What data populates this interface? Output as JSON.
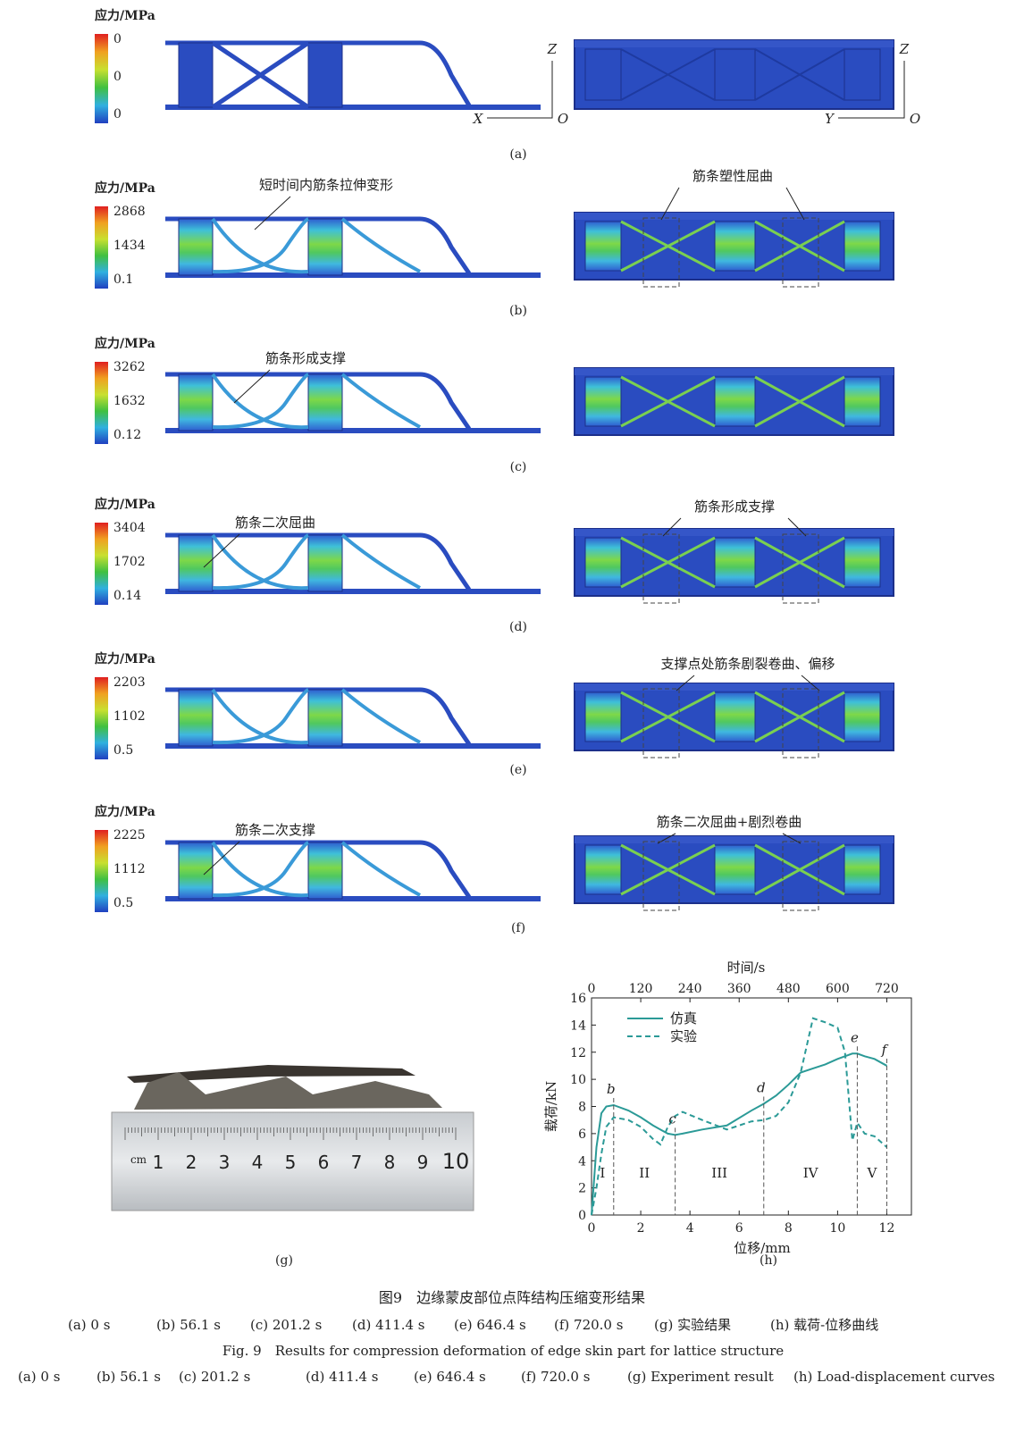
{
  "panels": [
    {
      "label": "(a)",
      "legend_title": "应力/MPa",
      "legend_ticks": [
        0,
        0,
        0
      ],
      "axis_labels_left": [
        "Z",
        "X",
        "O"
      ],
      "axis_labels_right": [
        "Z",
        "Y",
        "O"
      ],
      "annotations_left": [],
      "annotations_right": []
    },
    {
      "label": "(b)",
      "legend_title": "应力/MPa",
      "legend_ticks": [
        2868,
        1434,
        0.1
      ],
      "annotations_left": [
        "短时间内筋条拉伸变形"
      ],
      "annotations_right": [
        "筋条塑性屈曲"
      ]
    },
    {
      "label": "(c)",
      "legend_title": "应力/MPa",
      "legend_ticks": [
        3262,
        1632,
        0.12
      ],
      "annotations_left": [
        "筋条形成支撑"
      ],
      "annotations_right": []
    },
    {
      "label": "(d)",
      "legend_title": "应力/MPa",
      "legend_ticks": [
        3404,
        1702,
        0.14
      ],
      "annotations_left": [
        "筋条二次屈曲"
      ],
      "annotations_right": [
        "筋条形成支撑"
      ]
    },
    {
      "label": "(e)",
      "legend_title": "应力/MPa",
      "legend_ticks": [
        2203,
        1102,
        0.5
      ],
      "annotations_left": [],
      "annotations_right": [
        "支撑点处筋条剧裂卷曲、偏移"
      ]
    },
    {
      "label": "(f)",
      "legend_title": "应力/MPa",
      "legend_ticks": [
        2225,
        1112,
        0.5
      ],
      "annotations_left": [
        "筋条二次支撑"
      ],
      "annotations_right": [
        "筋条二次屈曲+剧烈卷曲"
      ]
    }
  ],
  "photo": {
    "label": "(g)",
    "ruler_unit": "cm",
    "ruler_numbers": [
      1,
      2,
      3,
      4,
      5,
      6,
      7,
      8,
      9,
      10
    ]
  },
  "chart_data": {
    "type": "line",
    "panel_label": "(h)",
    "xlabel": "位移/mm",
    "ylabel": "载荷/kN",
    "x2label": "时间/s",
    "x": [
      0,
      0.2,
      0.4,
      0.6,
      0.9,
      1.5,
      2,
      2.5,
      2.8,
      3.1,
      3.4,
      3.7,
      4.5,
      5.5,
      6.5,
      7,
      7.5,
      8,
      8.5,
      9,
      9.5,
      10,
      10.3,
      10.6,
      10.8,
      11.1,
      11.5,
      12
    ],
    "series": [
      {
        "name": "仿真",
        "color": "#2b9a97",
        "dashed": false,
        "values": [
          0,
          5,
          7.5,
          8,
          8.1,
          7.7,
          7.2,
          6.6,
          6.3,
          6.0,
          5.9,
          6.0,
          6.3,
          6.6,
          7.7,
          8.2,
          8.8,
          9.6,
          10.5,
          10.8,
          11.1,
          11.5,
          11.7,
          11.9,
          11.9,
          11.7,
          11.5,
          11.0
        ]
      },
      {
        "name": "实验",
        "color": "#2b9a97",
        "dashed": true,
        "values": [
          0,
          2,
          4.5,
          6.5,
          7.2,
          7.0,
          6.5,
          5.6,
          5.2,
          6.5,
          7.3,
          7.6,
          7.0,
          6.3,
          6.9,
          7.0,
          7.3,
          8.3,
          10.5,
          14.5,
          14.2,
          13.8,
          12,
          5.5,
          6.8,
          6.0,
          5.8,
          5.0
        ]
      }
    ],
    "xlim": [
      0,
      13
    ],
    "xticks": [
      0,
      2,
      4,
      6,
      8,
      10,
      12
    ],
    "x2lim": [
      0,
      780
    ],
    "x2ticks": [
      0,
      120,
      240,
      360,
      480,
      600,
      720
    ],
    "ylim": [
      0,
      16
    ],
    "yticks": [
      0,
      2,
      4,
      6,
      8,
      10,
      12,
      14,
      16
    ],
    "markers": [
      {
        "label": "b",
        "x": 0.9
      },
      {
        "label": "c",
        "x": 3.4
      },
      {
        "label": "d",
        "x": 7
      },
      {
        "label": "e",
        "x": 10.8
      },
      {
        "label": "f",
        "x": 12
      }
    ],
    "regions": [
      "I",
      "II",
      "III",
      "IV",
      "V"
    ],
    "legend": "upper left"
  },
  "caption": {
    "cn_title": "图9　边缘蒙皮部位点阵结构压缩变形结果",
    "cn_items": [
      "(a) 0 s",
      "(b) 56.1 s",
      "(c) 201.2 s",
      "(d) 411.4 s",
      "(e) 646.4 s",
      "(f) 720.0 s",
      "(g) 实验结果",
      "(h) 载荷-位移曲线"
    ],
    "en_title": "Fig. 9　Results for compression deformation of edge skin part for lattice structure",
    "en_items": [
      "(a) 0 s",
      "(b) 56.1 s",
      "(c) 201.2 s",
      "(d) 411.4 s",
      "(e) 646.4 s",
      "(f) 720.0 s",
      "(g) Experiment result",
      "(h) Load-displacement curves"
    ]
  }
}
